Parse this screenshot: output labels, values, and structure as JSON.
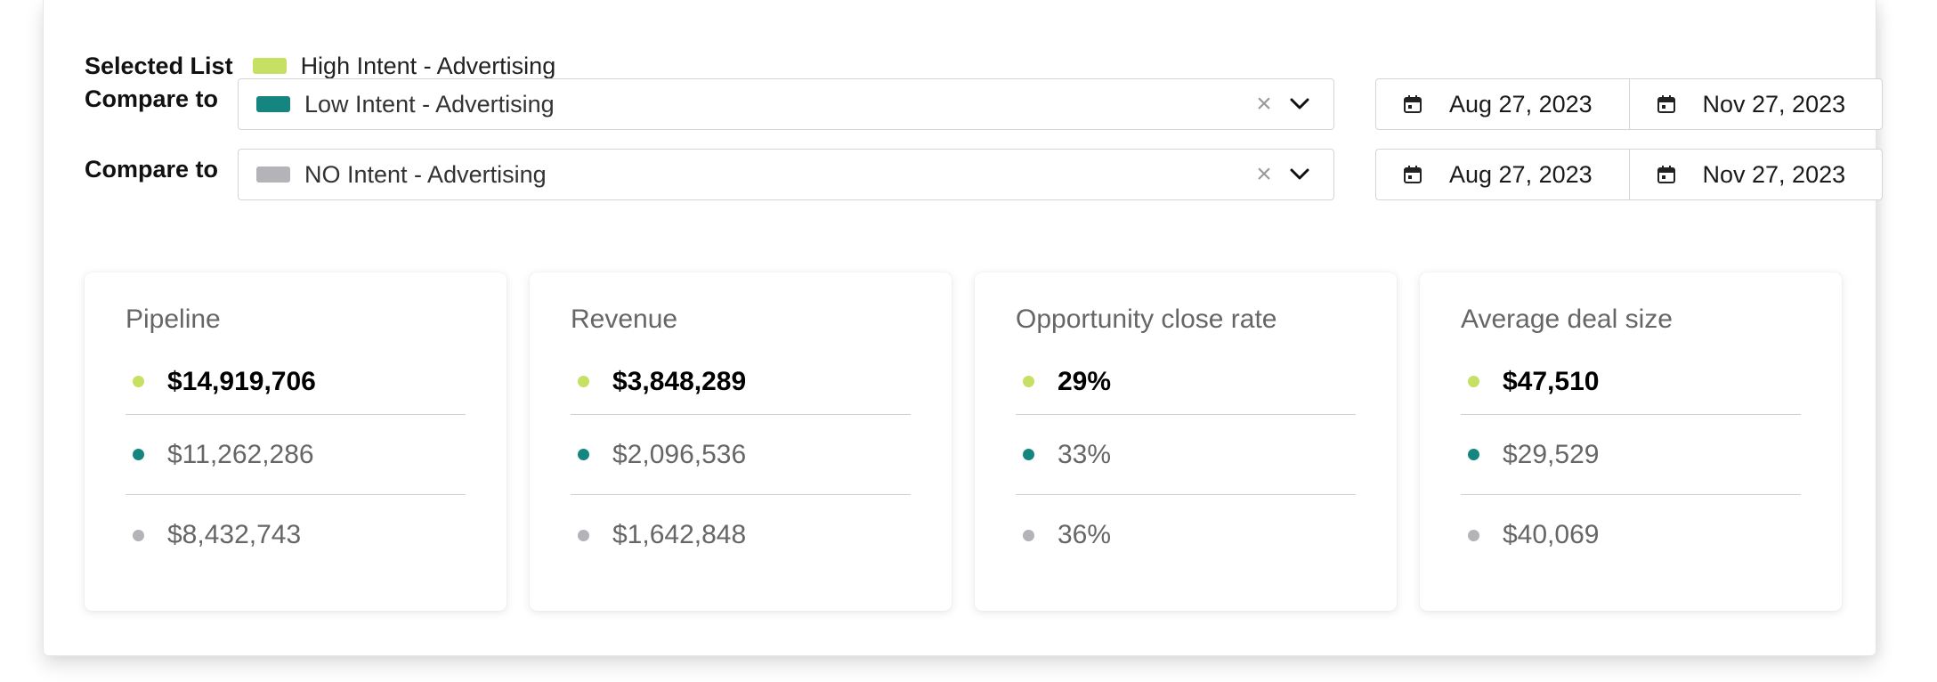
{
  "colors": {
    "selected": "#c5e063",
    "compare1": "#15867f",
    "compare2": "#b3b3b8"
  },
  "selected": {
    "label": "Selected List",
    "name": "High Intent - Advertising"
  },
  "compare_rows": [
    {
      "label": "Compare to",
      "name": "Low Intent - Advertising",
      "start_date": "Aug 27, 2023",
      "end_date": "Nov 27, 2023"
    },
    {
      "label": "Compare to",
      "name": "NO Intent - Advertising",
      "start_date": "Aug 27, 2023",
      "end_date": "Nov 27, 2023"
    }
  ],
  "icons": {
    "clear": "close-icon",
    "dropdown": "chevron-down-icon",
    "calendar": "calendar-icon"
  },
  "clear_glyph": "×",
  "cards": [
    {
      "title": "Pipeline",
      "values": [
        "$14,919,706",
        "$11,262,286",
        "$8,432,743"
      ]
    },
    {
      "title": "Revenue",
      "values": [
        "$3,848,289",
        "$2,096,536",
        "$1,642,848"
      ]
    },
    {
      "title": "Opportunity close rate",
      "values": [
        "29%",
        "33%",
        "36%"
      ]
    },
    {
      "title": "Average deal size",
      "values": [
        "$47,510",
        "$29,529",
        "$40,069"
      ]
    }
  ]
}
